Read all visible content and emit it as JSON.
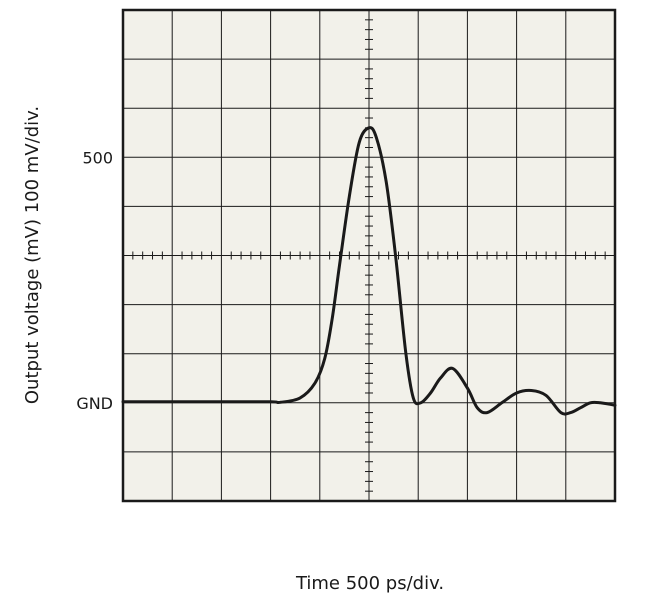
{
  "chart_data": {
    "type": "line",
    "xlabel": "Time 500 ps/div.",
    "ylabel": "Output voltage (mV) 100 mV/div.",
    "y_tick_labels": [
      {
        "value": 500,
        "text": "500"
      },
      {
        "value": 0,
        "text": "GND"
      }
    ],
    "grid": true,
    "x_divisions": 10,
    "y_divisions": 10,
    "xlim": [
      -5,
      5
    ],
    "ylim": [
      -200,
      800
    ],
    "x_unit": "div",
    "y_unit": "mV",
    "series": [
      {
        "x": [
          -5,
          -4,
          -3,
          -2,
          -1.8,
          -1.4,
          -1.1,
          -0.9,
          -0.75,
          -0.6,
          -0.4,
          -0.2,
          0,
          0.15,
          0.35,
          0.55,
          0.75,
          0.9,
          1.05,
          1.25,
          1.45,
          1.7,
          2.0,
          2.2,
          2.4,
          2.7,
          3.0,
          3.3,
          3.6,
          3.9,
          4.1,
          4.3,
          4.5,
          4.7,
          5.0
        ],
        "values": [
          2,
          2,
          2,
          2,
          1,
          10,
          40,
          90,
          170,
          280,
          420,
          530,
          560,
          540,
          450,
          290,
          100,
          10,
          0,
          20,
          50,
          70,
          30,
          -10,
          -20,
          0,
          20,
          25,
          15,
          -20,
          -20,
          -10,
          0,
          0,
          -5
        ]
      }
    ],
    "colors": {
      "trace": "#1a1a1a",
      "grid": "#1a1a1a",
      "screen": "#f2f1ea"
    }
  }
}
